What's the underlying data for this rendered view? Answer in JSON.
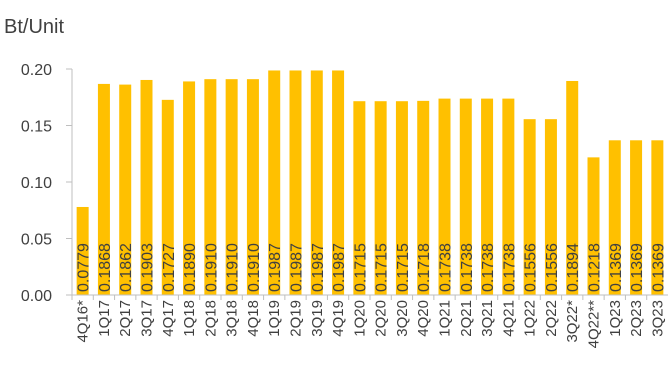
{
  "chart_data": {
    "type": "bar",
    "title": "",
    "ylabel": "Bt/Unit",
    "xlabel": "",
    "ylim": [
      0,
      0.2
    ],
    "yticks": [
      "0.00",
      "0.05",
      "0.10",
      "0.15",
      "0.20"
    ],
    "grid": false,
    "legend": "none",
    "bar_color": "#FFC000",
    "categories": [
      "4Q16*",
      "1Q17",
      "2Q17",
      "3Q17",
      "4Q17",
      "1Q18",
      "2Q18",
      "3Q18",
      "4Q18",
      "1Q19",
      "2Q19",
      "3Q19",
      "4Q19",
      "1Q20",
      "2Q20",
      "3Q20",
      "4Q20",
      "1Q21",
      "2Q21",
      "3Q21",
      "4Q21",
      "1Q22",
      "2Q22",
      "3Q22*",
      "4Q22**",
      "1Q23",
      "2Q23",
      "3Q23"
    ],
    "values": [
      0.0779,
      0.1868,
      0.1862,
      0.1903,
      0.1727,
      0.189,
      0.191,
      0.191,
      0.191,
      0.1987,
      0.1987,
      0.1987,
      0.1987,
      0.1715,
      0.1715,
      0.1715,
      0.1718,
      0.1738,
      0.1738,
      0.1738,
      0.1738,
      0.1556,
      0.1556,
      0.1894,
      0.1218,
      0.1369,
      0.1369,
      0.1369
    ],
    "data_labels": [
      "0.0779",
      "0.1868",
      "0.1862",
      "0.1903",
      "0.1727",
      "0.1890",
      "0.1910",
      "0.1910",
      "0.1910",
      "0.1987",
      "0.1987",
      "0.1987",
      "0.1987",
      "0.1715",
      "0.1715",
      "0.1715",
      "0.1718",
      "0.1738",
      "0.1738",
      "0.1738",
      "0.1738",
      "0.1556",
      "0.1556",
      "0.1894",
      "0.1218",
      "0.1369",
      "0.1369",
      "0.1369"
    ]
  }
}
